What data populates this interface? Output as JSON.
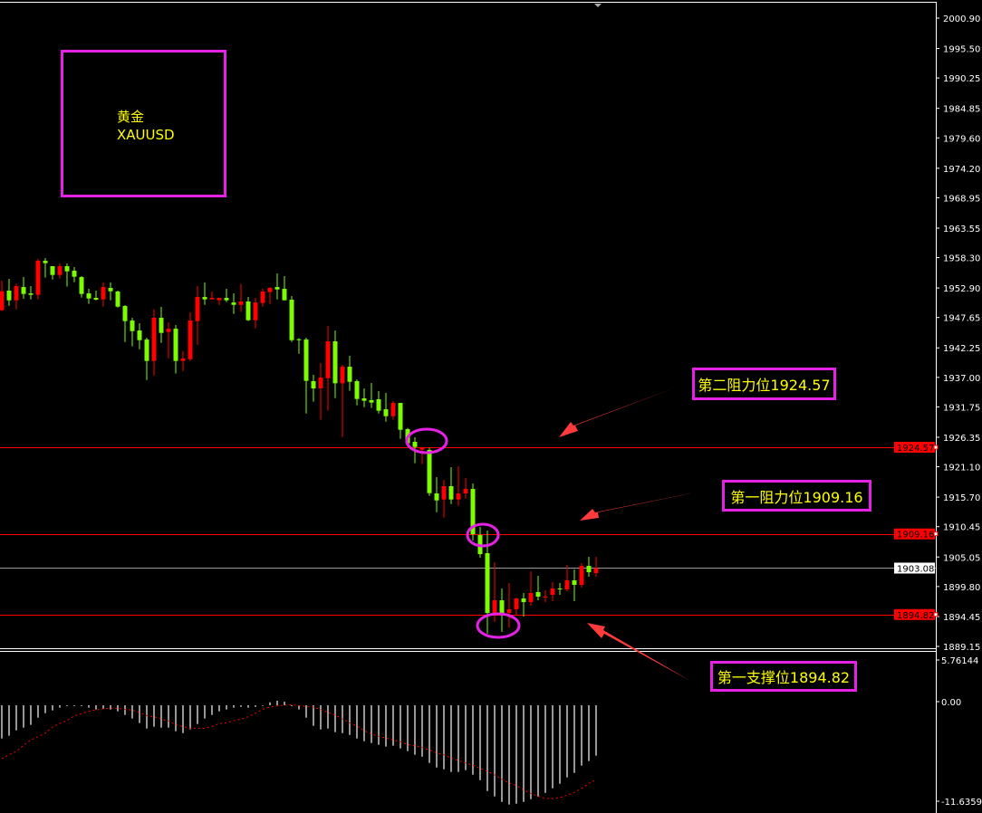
{
  "chart_data": {
    "type": "candlestick",
    "symbol_box": {
      "name_cn": "黄金",
      "symbol": "XAUUSD"
    },
    "colors": {
      "bullish": "#ff0000",
      "bearish": "#7cfc00",
      "levels": "#ff0000",
      "current_price_line": "#9a9a9a",
      "annotation_border": "#e621e6",
      "annotation_text": "#ffff00",
      "arrow": "#ff3b3b",
      "macd_histogram": "#c8c8c8",
      "macd_signal": "#ff0000"
    },
    "price_axis": {
      "ticks": [
        "2000.90",
        "1995.50",
        "1990.25",
        "1984.85",
        "1979.60",
        "1974.20",
        "1968.95",
        "1963.55",
        "1958.30",
        "1952.90",
        "1947.65",
        "1942.25",
        "1937.00",
        "1931.75",
        "1926.35",
        "1921.10",
        "1915.70",
        "1910.45",
        "1905.05",
        "1899.80",
        "1894.45",
        "1889.15"
      ],
      "range": [
        1889.15,
        2000.9
      ]
    },
    "price_tags": [
      {
        "value": "1924.57",
        "style": "level"
      },
      {
        "value": "1909.16",
        "style": "level"
      },
      {
        "value": "1903.08",
        "style": "current"
      },
      {
        "value": "1894.82",
        "style": "level"
      }
    ],
    "levels": [
      {
        "price": 1924.57,
        "label": "第二阻力位1924.57"
      },
      {
        "price": 1909.16,
        "label": "第一阻力位1909.16"
      },
      {
        "price": 1894.82,
        "label": "第一支撑位1894.82"
      }
    ],
    "current_price": 1903.08,
    "highlighted_candles": [
      58,
      66,
      69
    ],
    "ohlc_order": [
      "open",
      "high",
      "low",
      "close"
    ],
    "candles": [
      [
        1948.94,
        1954.2,
        1948.8,
        1952.32
      ],
      [
        1952.43,
        1954.52,
        1949.74,
        1950.71
      ],
      [
        1950.71,
        1953.66,
        1949.1,
        1953.23
      ],
      [
        1953.07,
        1954.84,
        1950.98,
        1951.84
      ],
      [
        1951.94,
        1953.23,
        1950.87,
        1951.68
      ],
      [
        1951.68,
        1958.06,
        1950.87,
        1957.74
      ],
      [
        1957.74,
        1958.22,
        1954.74,
        1957.31
      ],
      [
        1956.78,
        1956.78,
        1954.41,
        1955.22
      ],
      [
        1955.22,
        1957.26,
        1954.57,
        1956.78
      ],
      [
        1956.78,
        1957.26,
        1953.13,
        1955.86
      ],
      [
        1955.97,
        1956.61,
        1953.93,
        1954.9
      ],
      [
        1954.84,
        1955.0,
        1951.19,
        1951.84
      ],
      [
        1951.94,
        1952.75,
        1950.07,
        1951.03
      ],
      [
        1951.14,
        1952.43,
        1950.71,
        1950.82
      ],
      [
        1950.87,
        1953.88,
        1949.58,
        1953.07
      ],
      [
        1952.91,
        1953.88,
        1950.71,
        1952.32
      ],
      [
        1952.27,
        1952.43,
        1949.42,
        1949.58
      ],
      [
        1949.69,
        1949.85,
        1943.3,
        1947.01
      ],
      [
        1947.11,
        1947.6,
        1942.5,
        1945.23
      ],
      [
        1945.34,
        1946.63,
        1942.01,
        1943.62
      ],
      [
        1943.73,
        1944.05,
        1936.54,
        1939.92
      ],
      [
        1939.92,
        1949.1,
        1937.34,
        1947.6
      ],
      [
        1947.6,
        1949.53,
        1943.14,
        1944.91
      ],
      [
        1945.07,
        1946.79,
        1940.4,
        1945.66
      ],
      [
        1945.66,
        1946.31,
        1937.67,
        1939.92
      ],
      [
        1939.92,
        1941.69,
        1938.15,
        1940.35
      ],
      [
        1940.24,
        1948.56,
        1939.92,
        1947.11
      ],
      [
        1947.01,
        1953.23,
        1942.82,
        1951.3
      ],
      [
        1951.3,
        1953.88,
        1949.9,
        1950.87
      ],
      [
        1950.87,
        1952.27,
        1950.87,
        1951.14
      ],
      [
        1950.71,
        1951.14,
        1949.9,
        1951.14
      ],
      [
        1951.14,
        1952.75,
        1950.39,
        1950.71
      ],
      [
        1950.33,
        1951.94,
        1948.29,
        1949.9
      ],
      [
        1949.9,
        1953.61,
        1948.62,
        1950.5
      ],
      [
        1950.5,
        1951.3,
        1947.01,
        1947.17
      ],
      [
        1947.17,
        1951.14,
        1945.72,
        1950.33
      ],
      [
        1950.23,
        1952.75,
        1949.58,
        1952.27
      ],
      [
        1952.16,
        1953.07,
        1950.07,
        1952.91
      ],
      [
        1953.07,
        1955.49,
        1950.87,
        1952.64
      ],
      [
        1952.75,
        1955.0,
        1950.71,
        1950.71
      ],
      [
        1950.82,
        1951.46,
        1943.3,
        1943.62
      ],
      [
        1943.79,
        1943.95,
        1941.21,
        1943.62
      ],
      [
        1943.73,
        1944.05,
        1930.58,
        1936.38
      ],
      [
        1936.33,
        1937.45,
        1932.68,
        1935.04
      ],
      [
        1935.04,
        1939.55,
        1929.46,
        1936.97
      ],
      [
        1936.86,
        1946.15,
        1931.07,
        1943.41
      ],
      [
        1943.41,
        1945.34,
        1933.32,
        1935.95
      ],
      [
        1935.95,
        1939.23,
        1926.4,
        1938.9
      ],
      [
        1938.9,
        1940.84,
        1934.61,
        1936.22
      ],
      [
        1936.33,
        1936.65,
        1932.03,
        1933.16
      ],
      [
        1933.27,
        1935.04,
        1931.71,
        1932.84
      ],
      [
        1932.95,
        1936.0,
        1931.55,
        1932.52
      ],
      [
        1933.11,
        1934.56,
        1930.58,
        1931.07
      ],
      [
        1931.33,
        1934.23,
        1929.13,
        1930.1
      ],
      [
        1930.1,
        1932.78,
        1929.46,
        1932.46
      ],
      [
        1932.46,
        1932.46,
        1926.07,
        1927.68
      ],
      [
        1927.79,
        1928.01,
        1925.0,
        1925.27
      ],
      [
        1925.54,
        1926.34,
        1921.73,
        1924.62
      ],
      [
        1924.14,
        1924.46,
        1921.57,
        1924.46
      ],
      [
        1924.09,
        1924.46,
        1915.93,
        1916.41
      ],
      [
        1916.36,
        1919.26,
        1913.03,
        1915.12
      ],
      [
        1915.28,
        1918.77,
        1912.06,
        1917.65
      ],
      [
        1917.65,
        1921.03,
        1914.48,
        1915.28
      ],
      [
        1915.28,
        1921.19,
        1914.16,
        1916.36
      ],
      [
        1916.36,
        1919.1,
        1915.45,
        1917.16
      ],
      [
        1917.16,
        1918.13,
        1907.99,
        1909.11
      ],
      [
        1908.95,
        1910.4,
        1904.93,
        1905.57
      ],
      [
        1905.73,
        1909.76,
        1891.4,
        1895.1
      ],
      [
        1895.1,
        1904.12,
        1893.49,
        1897.36
      ],
      [
        1897.36,
        1899.45,
        1891.72,
        1895.1
      ],
      [
        1895.1,
        1900.42,
        1892.52,
        1895.75
      ],
      [
        1895.75,
        1897.84,
        1894.78,
        1897.68
      ],
      [
        1897.68,
        1898.65,
        1894.46,
        1897.03
      ],
      [
        1897.03,
        1902.51,
        1896.39,
        1898.65
      ],
      [
        1898.81,
        1901.71,
        1897.36,
        1898.0
      ],
      [
        1898.0,
        1899.13,
        1897.03,
        1898.0
      ],
      [
        1898.32,
        1900.58,
        1897.2,
        1899.45
      ],
      [
        1899.45,
        1900.42,
        1898.32,
        1899.29
      ],
      [
        1899.29,
        1903.64,
        1898.97,
        1900.9
      ],
      [
        1900.9,
        1902.83,
        1897.2,
        1900.1
      ],
      [
        1900.1,
        1903.96,
        1899.61,
        1903.48
      ],
      [
        1903.48,
        1905.09,
        1901.55,
        1902.35
      ],
      [
        1902.19,
        1905.09,
        1901.55,
        1903.08
      ]
    ],
    "macd": {
      "axis_ticks": [
        "5.76144",
        "0.00",
        "-11.63597"
      ],
      "range": [
        -11.63597,
        5.76144
      ],
      "histogram": [
        -3.88,
        -3.56,
        -2.93,
        -2.61,
        -2.29,
        -1.45,
        -0.92,
        -0.6,
        -0.28,
        0,
        0,
        0.02,
        -0.28,
        -0.49,
        -0.39,
        -0.49,
        -0.71,
        -1.13,
        -1.55,
        -2.08,
        -2.72,
        -2.5,
        -2.61,
        -2.61,
        -3.03,
        -3.25,
        -2.82,
        -2.19,
        -1.55,
        -1.13,
        -0.71,
        -0.49,
        -0.28,
        -0.18,
        -0.28,
        -0.18,
        -0.07,
        0.35,
        0.53,
        0.42,
        0,
        -0.49,
        -1.45,
        -2.4,
        -2.82,
        -2.72,
        -3.14,
        -3.25,
        -3.46,
        -3.88,
        -4.2,
        -4.41,
        -4.62,
        -4.83,
        -4.73,
        -5.04,
        -5.36,
        -5.78,
        -6.0,
        -6.74,
        -7.27,
        -7.48,
        -7.79,
        -7.79,
        -7.58,
        -8.11,
        -8.75,
        -10.02,
        -10.65,
        -11.29,
        -11.6,
        -11.5,
        -11.29,
        -10.97,
        -10.65,
        -10.23,
        -9.7,
        -9.17,
        -8.43,
        -7.9,
        -7.05,
        -6.52,
        -5.89
      ],
      "signal": [
        -6.24,
        -5.78,
        -5.4,
        -4.66,
        -4.06,
        -3.67,
        -3.25,
        -2.54,
        -2.12,
        -1.8,
        -1.23,
        -0.99,
        -0.71,
        -0.53,
        -0.42,
        -0.35,
        -0.35,
        -0.49,
        -0.56,
        -0.85,
        -1.2,
        -1.34,
        -1.62,
        -1.83,
        -2.26,
        -2.5,
        -2.68,
        -2.68,
        -2.68,
        -2.47,
        -2.15,
        -2.05,
        -1.8,
        -1.62,
        -1.34,
        -0.95,
        -0.46,
        -0.21,
        -0.07,
        0,
        0.07,
        -0.07,
        -0.11,
        -0.21,
        -0.49,
        -0.85,
        -1.13,
        -1.59,
        -2.05,
        -2.43,
        -2.96,
        -3.35,
        -3.63,
        -3.84,
        -4.06,
        -4.27,
        -4.59,
        -4.73,
        -4.94,
        -5.22,
        -5.57,
        -5.78,
        -6.17,
        -6.45,
        -6.74,
        -7.02,
        -7.37,
        -7.72,
        -8.15,
        -8.64,
        -9.06,
        -9.38,
        -9.91,
        -10.3,
        -10.62,
        -10.9,
        -10.9,
        -10.79,
        -10.51,
        -10.19,
        -9.7,
        -9.13,
        -8.71
      ]
    }
  }
}
